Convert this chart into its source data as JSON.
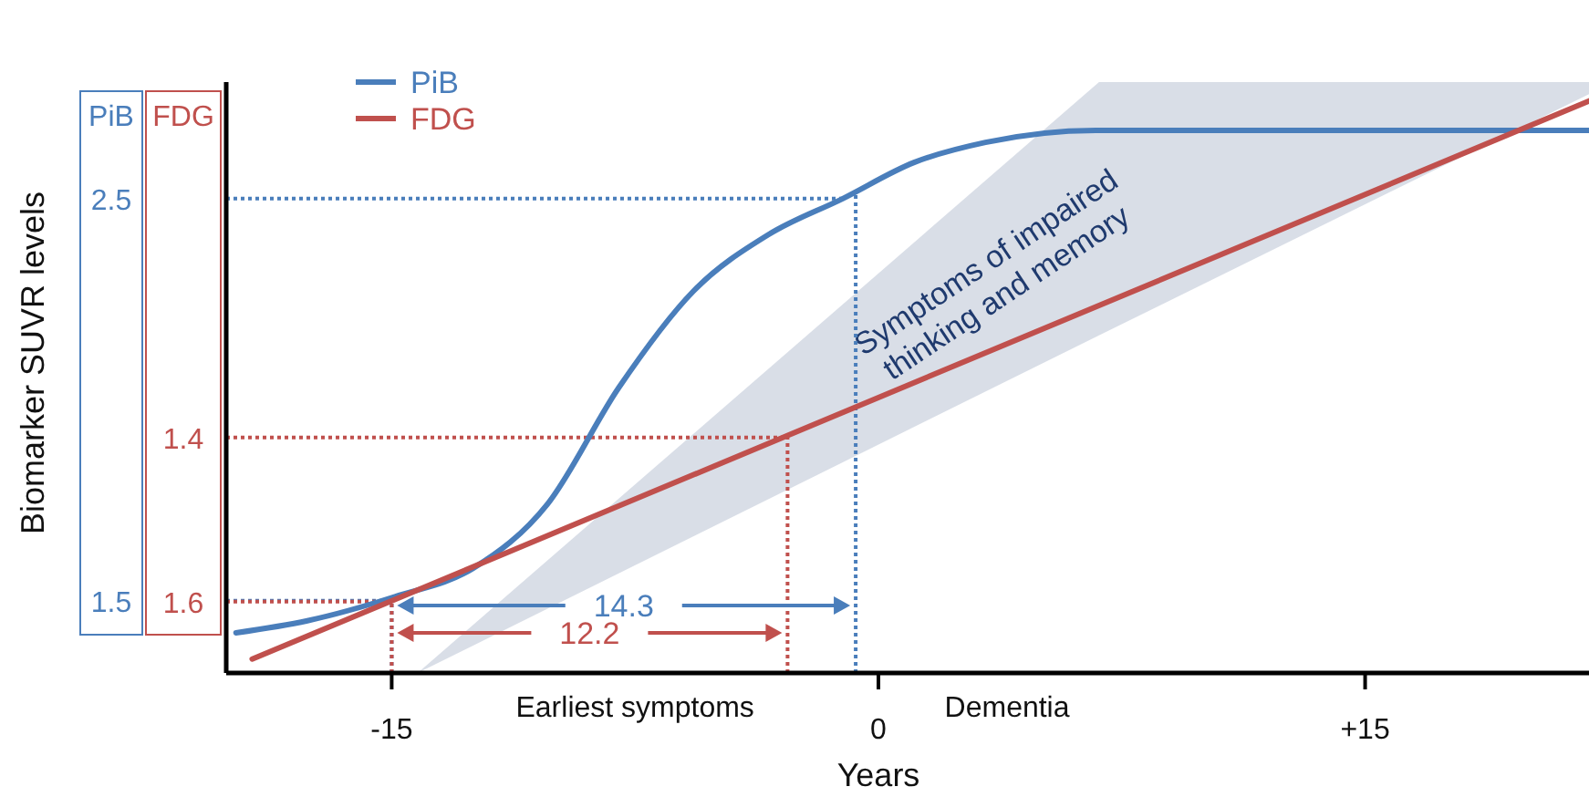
{
  "chart_data": {
    "type": "line",
    "xlabel": "Years",
    "ylabel": "Biomarker SUVR levels",
    "xlim": [
      -20.1,
      21.9
    ],
    "xticks": [
      -15,
      0,
      {
        "value": 15,
        "label": "+15"
      }
    ],
    "ylim": [
      1.32,
      2.79
    ],
    "yticks": [
      1.5,
      2.5
    ],
    "y2lim": [
      1.687,
      0.967
    ],
    "y2ticks": [
      1.6,
      1.4
    ],
    "legend": "top left",
    "series": [
      {
        "name": "PiB",
        "color": "#4a7ebb",
        "x": [
          -19.8,
          -17.6,
          -14.9,
          -12.5,
          -10.2,
          -8.0,
          -5.7,
          -3.4,
          -1.1,
          1.1,
          3.3,
          6.7,
          12.4,
          21.9
        ],
        "values": [
          1.42,
          1.45,
          1.51,
          1.58,
          1.74,
          2.03,
          2.27,
          2.41,
          2.5,
          2.59,
          2.64,
          2.67,
          2.67,
          2.67
        ]
      },
      {
        "name": "FDG",
        "color": "#c0504d",
        "axis": "y2",
        "x": [
          -19.3,
          21.9
        ],
        "values": [
          1.67,
          0.99
        ]
      },
      {
        "name": "Symptoms of impaired thinking and memory",
        "type": "line",
        "color": "#1f3a6e",
        "x": [
          -14.2,
          6.8,
          21.9
        ],
        "values": [
          null,
          null,
          null
        ],
        "lower": [
          1.32,
          2.16,
          2.76
        ],
        "upper": [
          1.32,
          2.79,
          2.79
        ]
      }
    ],
    "ref_lines": [
      {
        "axis": "y",
        "value": 2.5,
        "color": "#4a7ebb",
        "line_style": "dotted"
      },
      {
        "axis": "y",
        "value": 1.5,
        "color": "#4a7ebb",
        "line_style": "dotted"
      },
      {
        "axis": "y2",
        "value": 1.4,
        "color": "#c0504d",
        "line_style": "dotted"
      },
      {
        "axis": "y2",
        "value": 1.6,
        "color": "#c0504d",
        "line_style": "dotted"
      },
      {
        "axis": "x",
        "value": -15,
        "color": "#4a7ebb",
        "line_style": "dotted"
      },
      {
        "axis": "x",
        "value": -0.7,
        "color": "#4a7ebb",
        "line_style": "dotted"
      },
      {
        "axis": "x",
        "value": -15,
        "color": "#c0504d",
        "line_style": "dotted"
      },
      {
        "axis": "x",
        "value": -2.8,
        "color": "#c0504d",
        "line_style": "dotted"
      }
    ],
    "annotations": [
      "14.3",
      "12.2",
      "Earliest symptoms",
      "Dementia"
    ]
  }
}
